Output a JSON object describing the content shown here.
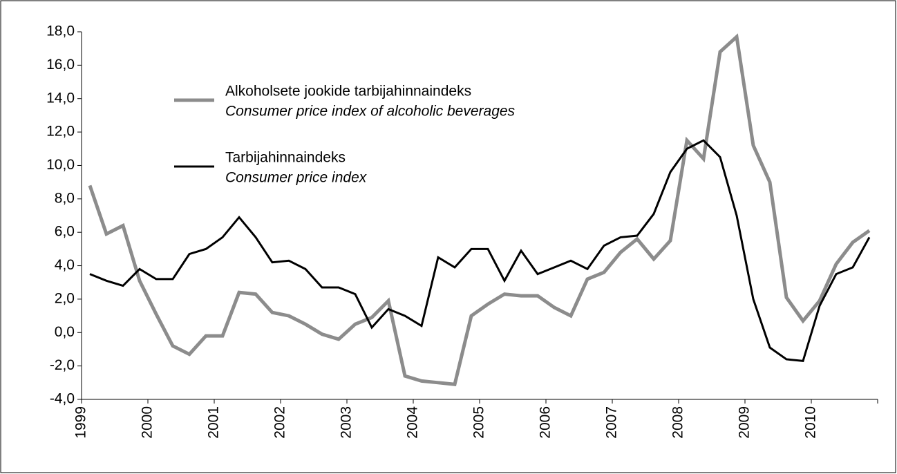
{
  "chart_data": {
    "type": "line",
    "x": [
      1999.125,
      1999.375,
      1999.625,
      1999.875,
      2000.125,
      2000.375,
      2000.625,
      2000.875,
      2001.125,
      2001.375,
      2001.625,
      2001.875,
      2002.125,
      2002.375,
      2002.625,
      2002.875,
      2003.125,
      2003.375,
      2003.625,
      2003.875,
      2004.125,
      2004.375,
      2004.625,
      2004.875,
      2005.125,
      2005.375,
      2005.625,
      2005.875,
      2006.125,
      2006.375,
      2006.625,
      2006.875,
      2007.125,
      2007.375,
      2007.625,
      2007.875,
      2008.125,
      2008.375,
      2008.625,
      2008.875,
      2009.125,
      2009.375,
      2009.625,
      2009.875,
      2010.125,
      2010.375,
      2010.625,
      2010.875
    ],
    "series": [
      {
        "name": "Alkoholsete jookide tarbijahinnaindeks",
        "name_en": "Consumer price index of alcoholic beverages",
        "color": "#8c8c8c",
        "width": 5,
        "values": [
          8.8,
          5.9,
          6.4,
          3.1,
          1.1,
          -0.8,
          -1.3,
          -0.2,
          -0.2,
          2.4,
          2.3,
          1.2,
          1.0,
          0.5,
          -0.1,
          -0.4,
          0.5,
          0.9,
          1.9,
          -2.6,
          -2.9,
          -3.0,
          -3.1,
          1.0,
          1.7,
          2.3,
          2.2,
          2.2,
          1.5,
          1.0,
          3.2,
          3.6,
          4.8,
          5.6,
          4.4,
          5.5,
          11.5,
          10.4,
          16.8,
          17.7,
          11.2,
          9.0,
          2.1,
          0.7,
          1.9,
          4.1,
          5.4,
          6.1
        ]
      },
      {
        "name": "Tarbijahinnaindeks",
        "name_en": "Consumer price index",
        "color": "#000000",
        "width": 3,
        "values": [
          3.5,
          3.1,
          2.8,
          3.8,
          3.2,
          3.2,
          4.7,
          5.0,
          5.7,
          6.9,
          5.7,
          4.2,
          4.3,
          3.8,
          2.7,
          2.7,
          2.3,
          0.3,
          1.4,
          1.0,
          0.4,
          4.5,
          3.9,
          5.0,
          5.0,
          3.1,
          4.9,
          3.5,
          3.9,
          4.3,
          3.8,
          5.2,
          5.7,
          5.8,
          7.1,
          9.6,
          11.0,
          11.5,
          10.5,
          7.0,
          2.0,
          -0.9,
          -1.6,
          -1.7,
          1.6,
          3.5,
          3.9,
          5.7
        ]
      }
    ],
    "xlim": [
      1999,
      2011
    ],
    "xticks": [
      1999,
      2000,
      2001,
      2002,
      2003,
      2004,
      2005,
      2006,
      2007,
      2008,
      2009,
      2010
    ],
    "ylim": [
      -4,
      18
    ],
    "yticks": [
      {
        "value": -4,
        "label": "-4,0"
      },
      {
        "value": -2,
        "label": "-2,0"
      },
      {
        "value": 0,
        "label": "0,0"
      },
      {
        "value": 2,
        "label": "2,0"
      },
      {
        "value": 4,
        "label": "4,0"
      },
      {
        "value": 6,
        "label": "6,0"
      },
      {
        "value": 8,
        "label": "8,0"
      },
      {
        "value": 10,
        "label": "10,0"
      },
      {
        "value": 12,
        "label": "12,0"
      },
      {
        "value": 14,
        "label": "14,0"
      },
      {
        "value": 16,
        "label": "16,0"
      },
      {
        "value": 18,
        "label": "18,0"
      }
    ],
    "grid": false
  }
}
